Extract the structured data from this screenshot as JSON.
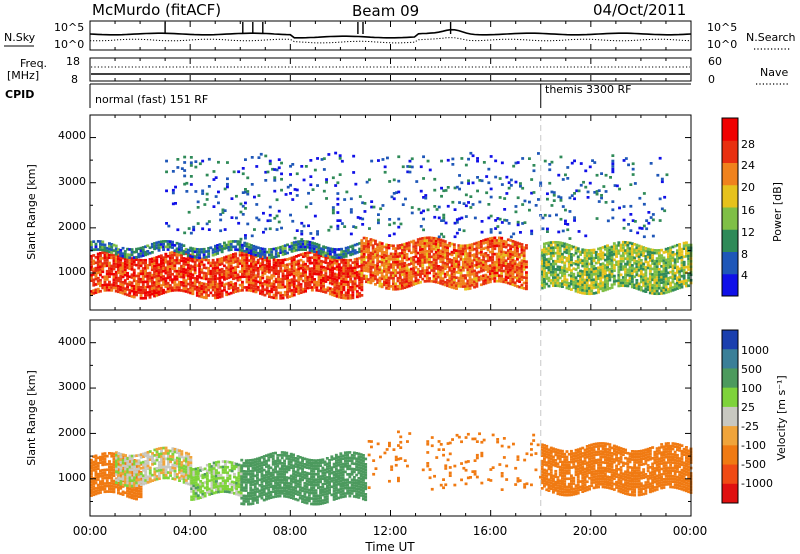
{
  "header": {
    "station": "McMurdo (fitACF)",
    "beam": "Beam 09",
    "date": "04/Oct/2011"
  },
  "sky_panel": {
    "left_label": "N.Sky",
    "left_ticks": [
      "10^5",
      "10^0"
    ],
    "right_ticks": [
      "10^5",
      "10^0"
    ],
    "right_label": "N.Search"
  },
  "freq_panel": {
    "left_label_1": "Freq.",
    "left_label_2": "[MHz]",
    "left_ticks": [
      "18",
      "8"
    ],
    "right_ticks": [
      "60",
      "0"
    ],
    "right_label": "Nave"
  },
  "cpid_panel": {
    "label": "CPID",
    "program_1": "normal (fast) 151 RF",
    "program_2": "themis 3300 RF",
    "switch_time": 18.0
  },
  "x_axis": {
    "title": "Time UT",
    "tick_labels": [
      "00:00",
      "04:00",
      "08:00",
      "12:00",
      "16:00",
      "20:00",
      "00:00"
    ],
    "range": [
      0,
      24
    ]
  },
  "power_panel": {
    "ylabel": "Slant Range [km]",
    "ytick_labels": [
      "1000",
      "2000",
      "3000",
      "4000"
    ],
    "colorbar_title": "Power [dB]",
    "colorbar_ticks": [
      "4",
      "8",
      "12",
      "16",
      "20",
      "24",
      "28"
    ]
  },
  "velocity_panel": {
    "ylabel": "Slant Range [km]",
    "ytick_labels": [
      "1000",
      "2000",
      "3000",
      "4000"
    ],
    "colorbar_title": "Velocity [m s⁻¹]",
    "colorbar_ticks": [
      "1000",
      "500",
      "100",
      "25",
      "-25",
      "-100",
      "-500",
      "-1000"
    ]
  },
  "chart_data": [
    {
      "type": "heatmap",
      "title": "Power",
      "xlabel": "Time UT",
      "ylabel": "Slant Range [km]",
      "xlim": [
        0,
        24
      ],
      "ylim": [
        180,
        4500
      ],
      "colorbar": {
        "label": "Power [dB]",
        "ticks": [
          4,
          8,
          12,
          16,
          20,
          24,
          28
        ],
        "colors": [
          "#1010e8",
          "#1f57b8",
          "#2f8a58",
          "#7fbf46",
          "#e6c21c",
          "#f0821c",
          "#e83010",
          "#f00000"
        ]
      },
      "regions": [
        {
          "t0": 0.0,
          "t1": 10.8,
          "r0": 500,
          "r1": 1400,
          "value": 26
        },
        {
          "t0": 0.0,
          "t1": 10.8,
          "r0": 1400,
          "r1": 1600,
          "value": 8
        },
        {
          "t0": 10.8,
          "t1": 17.4,
          "r0": 700,
          "r1": 1700,
          "value": 24
        },
        {
          "t0": 18.0,
          "t1": 24.0,
          "r0": 600,
          "r1": 1600,
          "value": 14
        },
        {
          "t0": 3.0,
          "t1": 23.0,
          "r0": 1800,
          "r1": 3600,
          "value": 6
        }
      ]
    },
    {
      "type": "heatmap",
      "title": "Velocity",
      "xlabel": "Time UT",
      "ylabel": "Slant Range [km]",
      "xlim": [
        0,
        24
      ],
      "ylim": [
        180,
        4500
      ],
      "colorbar": {
        "label": "Velocity [m s⁻¹]",
        "ticks": [
          1000,
          500,
          100,
          25,
          -25,
          -100,
          -500,
          -1000
        ],
        "colors": [
          "#1a3fae",
          "#3a7f98",
          "#4c9a5e",
          "#7ed33a",
          "#c8c8c0",
          "#f0a43a",
          "#f07a12",
          "#f04a14",
          "#e01010"
        ]
      },
      "regions": [
        {
          "t0": 0.0,
          "t1": 2.0,
          "r0": 600,
          "r1": 1500,
          "value": -300
        },
        {
          "t0": 1.0,
          "t1": 4.0,
          "r0": 900,
          "r1": 1600,
          "value": 0
        },
        {
          "t0": 4.0,
          "t1": 6.0,
          "r0": 600,
          "r1": 1300,
          "value": 50
        },
        {
          "t0": 6.0,
          "t1": 11.0,
          "r0": 500,
          "r1": 1500,
          "value": 300
        },
        {
          "t0": 11.0,
          "t1": 18.0,
          "r0": 800,
          "r1": 2000,
          "value": -300
        },
        {
          "t0": 18.0,
          "t1": 24.0,
          "r0": 700,
          "r1": 1700,
          "value": -300
        }
      ]
    }
  ]
}
